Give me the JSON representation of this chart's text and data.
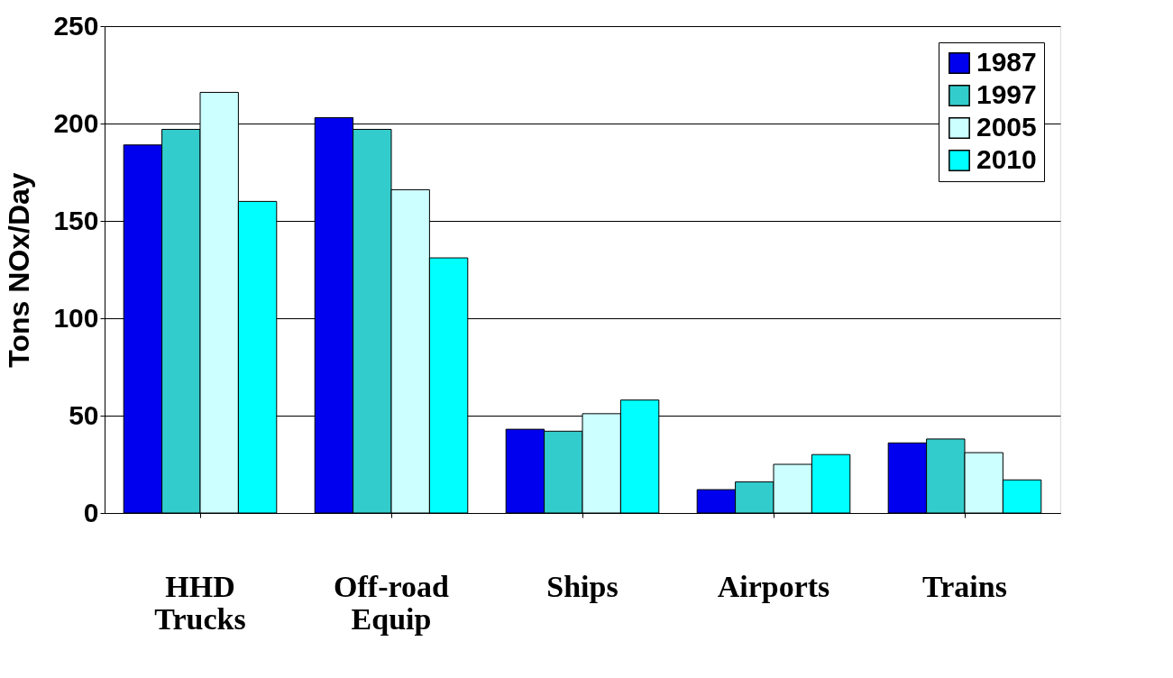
{
  "chart_data": {
    "type": "bar",
    "ylabel": "Tons NOx/Day",
    "categories": [
      "HHD Trucks",
      "Off-road Equip",
      "Ships",
      "Airports",
      "Trains"
    ],
    "series": [
      {
        "name": "1987",
        "color": "#0000ee",
        "values": [
          189,
          203,
          43,
          12,
          36
        ]
      },
      {
        "name": "1997",
        "color": "#33cccc",
        "values": [
          197,
          197,
          42,
          16,
          38
        ]
      },
      {
        "name": "2005",
        "color": "#ccffff",
        "values": [
          216,
          166,
          51,
          25,
          31
        ]
      },
      {
        "name": "2010",
        "color": "#00ffff",
        "values": [
          160,
          131,
          58,
          30,
          17
        ]
      }
    ],
    "ylim": [
      0,
      250
    ],
    "yticks": [
      0,
      50,
      100,
      150,
      200,
      250
    ],
    "grid": "y",
    "legend": "top right"
  }
}
